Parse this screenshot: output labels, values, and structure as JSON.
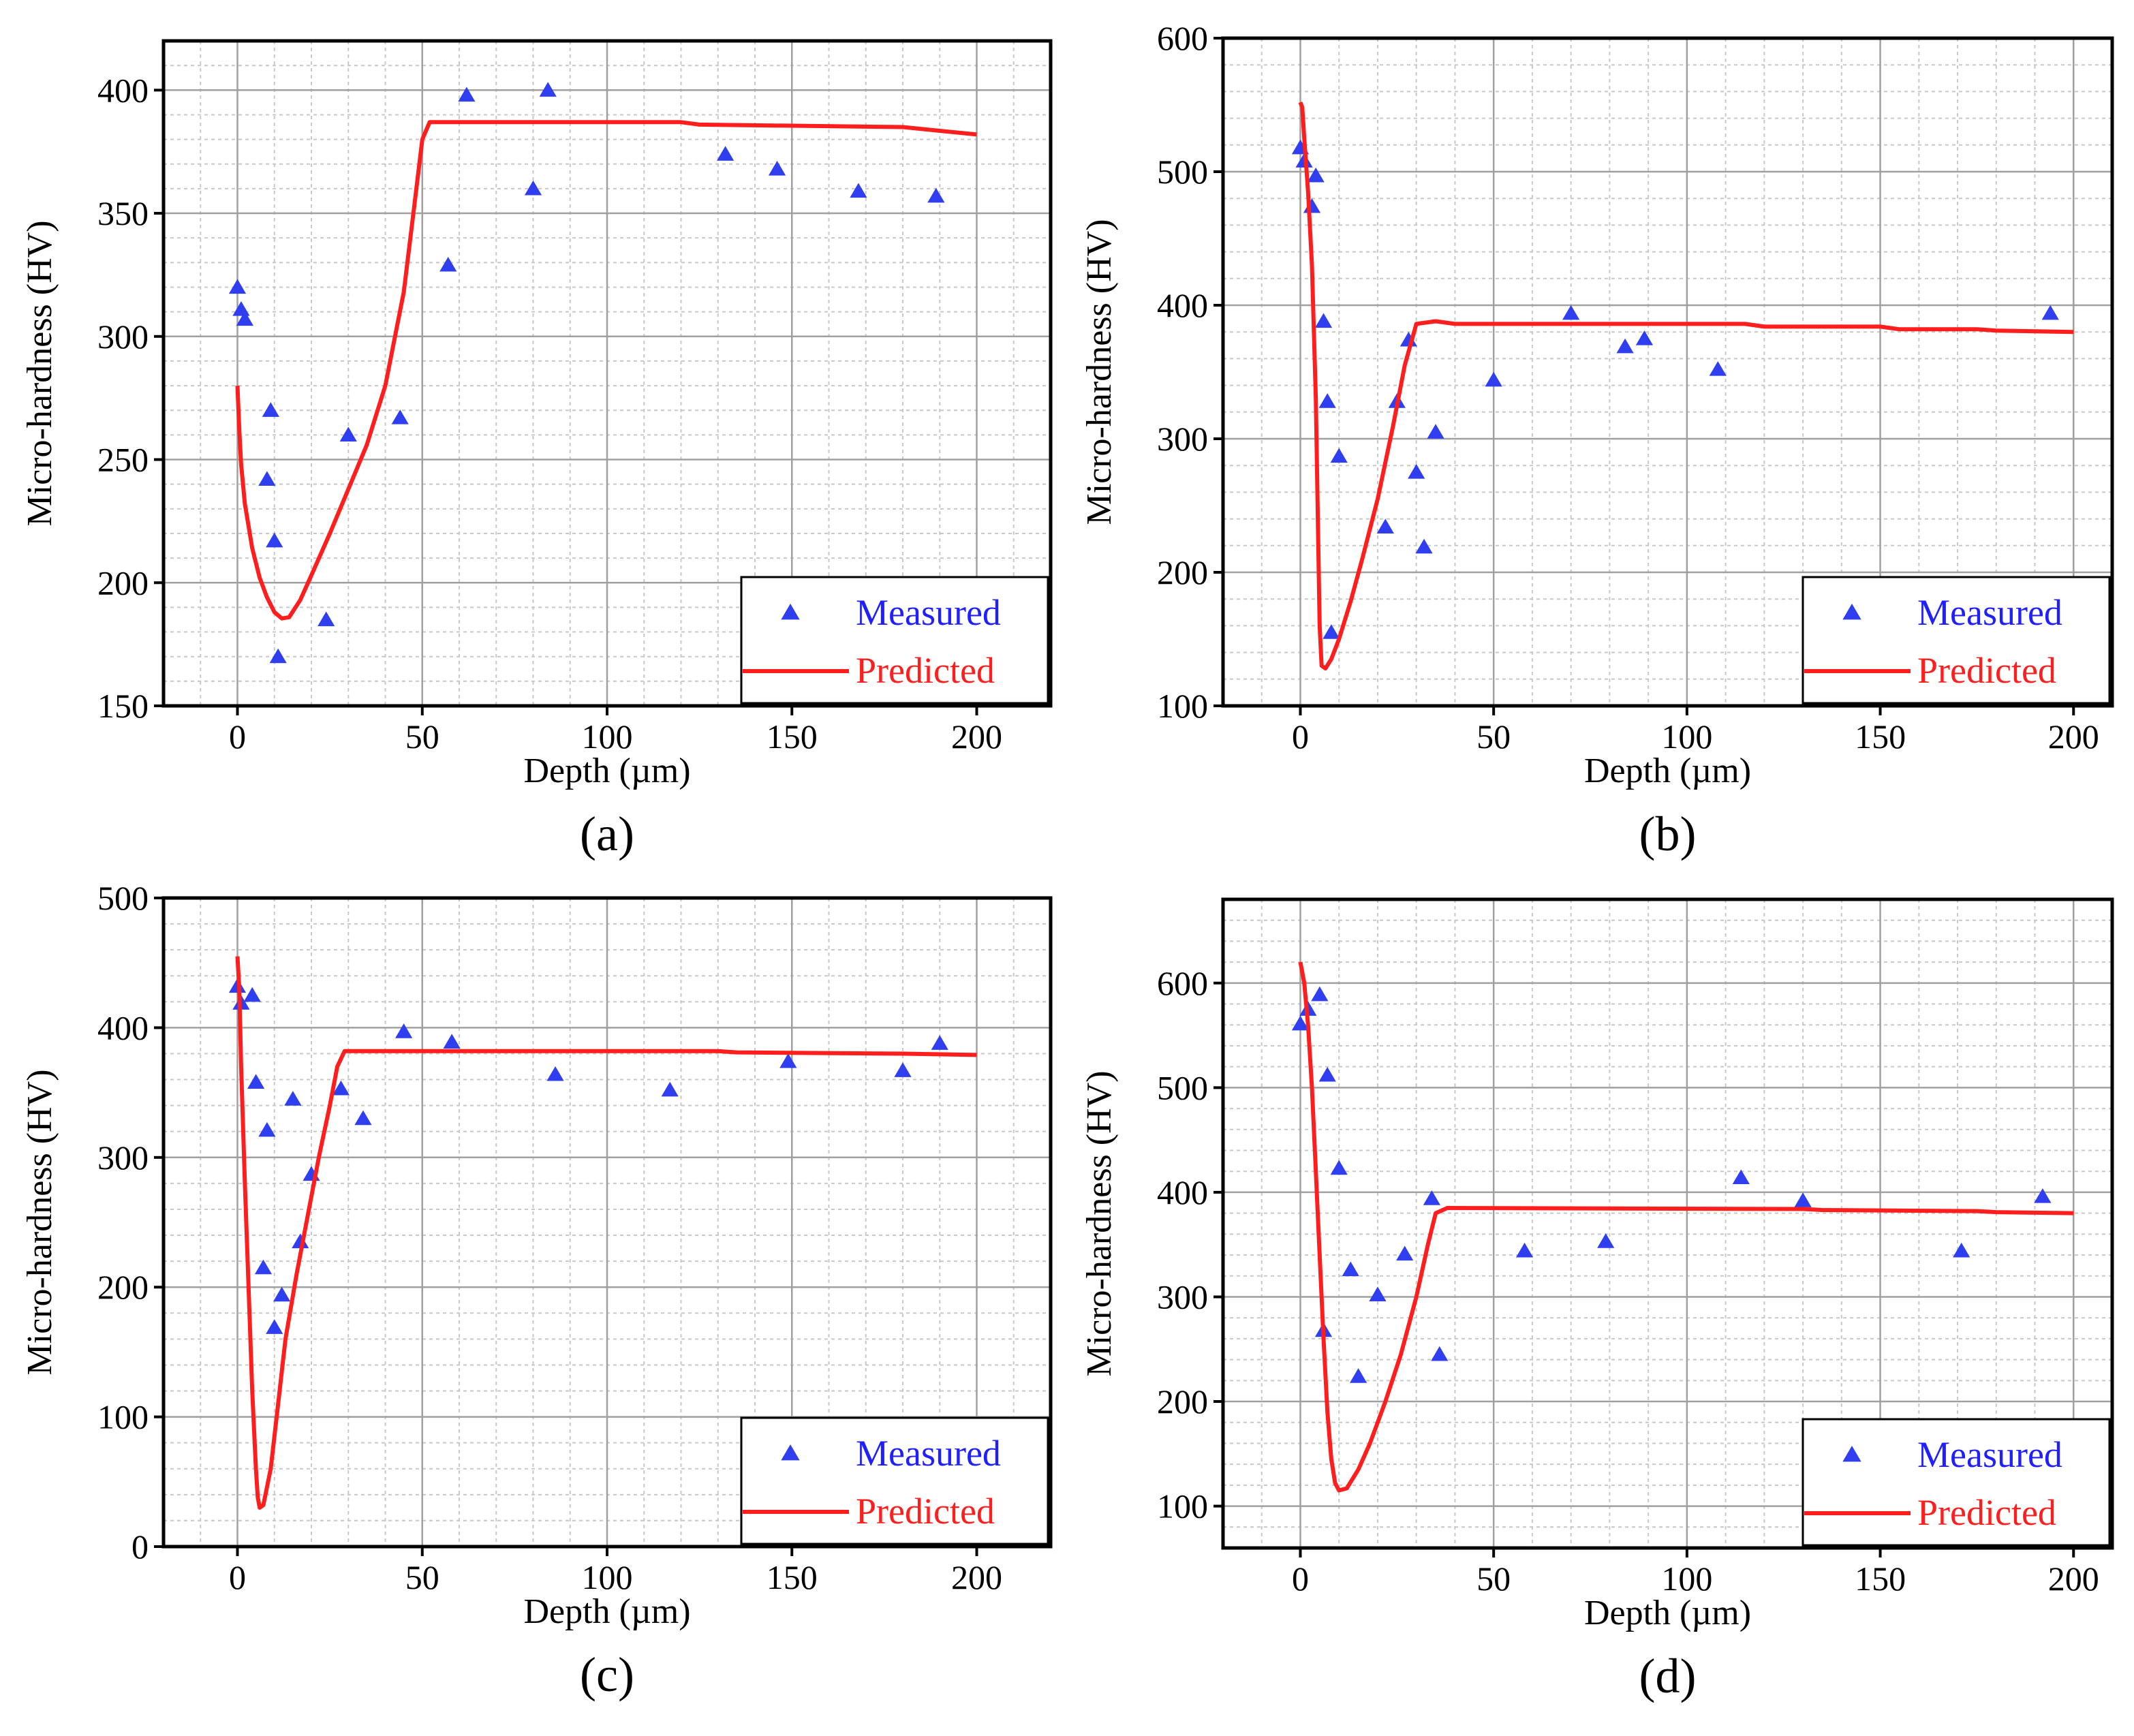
{
  "colors": {
    "measured": "#2f3ff0",
    "predicted": "#ff1e1e",
    "axis": "#000000",
    "grid_major": "#a0a0a0",
    "grid_minor": "#c8c8c8",
    "legend_measured_text": "#2020ff",
    "legend_predicted_text": "#ff1e1e"
  },
  "chart_data": [
    {
      "type": "scatter",
      "panel_label": "(a)",
      "xlabel": "Depth (µm)",
      "ylabel": "Micro-hardness (HV)",
      "xlim": [
        -20,
        220
      ],
      "ylim": [
        150,
        420
      ],
      "xticks": [
        0,
        50,
        100,
        150,
        200
      ],
      "yticks": [
        150,
        200,
        250,
        300,
        350,
        400
      ],
      "grid": true,
      "legend_position": "bottom-right",
      "series": [
        {
          "name": "Measured",
          "kind": "scatter",
          "marker": "triangle",
          "points": [
            [
              0,
              320
            ],
            [
              1,
              311
            ],
            [
              2,
              307
            ],
            [
              8,
              242
            ],
            [
              9,
              270
            ],
            [
              10,
              217
            ],
            [
              11,
              170
            ],
            [
              24,
              185
            ],
            [
              30,
              260
            ],
            [
              44,
              267
            ],
            [
              57,
              329
            ],
            [
              62,
              398
            ],
            [
              80,
              360
            ],
            [
              84,
              400
            ],
            [
              132,
              374
            ],
            [
              146,
              368
            ],
            [
              168,
              359
            ],
            [
              189,
              357
            ]
          ]
        },
        {
          "name": "Predicted",
          "kind": "line",
          "points": [
            [
              0,
              280
            ],
            [
              0.5,
              262
            ],
            [
              1,
              248
            ],
            [
              2,
              232
            ],
            [
              4,
              214
            ],
            [
              6,
              202
            ],
            [
              8,
              194
            ],
            [
              10,
              188
            ],
            [
              12,
              185.5
            ],
            [
              14,
              186
            ],
            [
              17,
              193
            ],
            [
              20,
              203
            ],
            [
              25,
              220
            ],
            [
              30,
              238
            ],
            [
              35,
              256
            ],
            [
              40,
              280
            ],
            [
              45,
              318
            ],
            [
              48,
              355
            ],
            [
              50,
              380
            ],
            [
              52,
              387
            ],
            [
              120,
              387
            ],
            [
              125,
              386
            ],
            [
              180,
              385
            ],
            [
              200,
              382
            ]
          ]
        }
      ]
    },
    {
      "type": "scatter",
      "panel_label": "(b)",
      "xlabel": "Depth (µm)",
      "ylabel": "Micro-hardness (HV)",
      "xlim": [
        -20,
        210
      ],
      "ylim": [
        100,
        600
      ],
      "xticks": [
        0,
        50,
        100,
        150,
        200
      ],
      "yticks": [
        100,
        200,
        300,
        400,
        500,
        600
      ],
      "grid": true,
      "legend_position": "bottom-right",
      "series": [
        {
          "name": "Measured",
          "kind": "scatter",
          "marker": "triangle",
          "points": [
            [
              0,
              518
            ],
            [
              1,
              508
            ],
            [
              3,
              474
            ],
            [
              4,
              497
            ],
            [
              6,
              388
            ],
            [
              7,
              328
            ],
            [
              8,
              155
            ],
            [
              10,
              287
            ],
            [
              22,
              234
            ],
            [
              25,
              328
            ],
            [
              28,
              374
            ],
            [
              30,
              275
            ],
            [
              32,
              219
            ],
            [
              35,
              305
            ],
            [
              50,
              344
            ],
            [
              70,
              394
            ],
            [
              84,
              369
            ],
            [
              89,
              375
            ],
            [
              108,
              352
            ],
            [
              194,
              394
            ]
          ]
        },
        {
          "name": "Predicted",
          "kind": "line",
          "points": [
            [
              0,
              552
            ],
            [
              0.5,
              548
            ],
            [
              1,
              525
            ],
            [
              2,
              485
            ],
            [
              3,
              430
            ],
            [
              4,
              330
            ],
            [
              5,
              160
            ],
            [
              5.5,
              130
            ],
            [
              6.5,
              128
            ],
            [
              8,
              135
            ],
            [
              10,
              150
            ],
            [
              13,
              178
            ],
            [
              16,
              210
            ],
            [
              20,
              255
            ],
            [
              24,
              310
            ],
            [
              27,
              355
            ],
            [
              30,
              386
            ],
            [
              35,
              388
            ],
            [
              40,
              386
            ],
            [
              115,
              386
            ],
            [
              120,
              384
            ],
            [
              150,
              384
            ],
            [
              155,
              382
            ],
            [
              175,
              382
            ],
            [
              180,
              381
            ],
            [
              200,
              380
            ]
          ]
        }
      ]
    },
    {
      "type": "scatter",
      "panel_label": "(c)",
      "xlabel": "Depth (µm)",
      "ylabel": "Micro-hardness (HV)",
      "xlim": [
        -20,
        220
      ],
      "ylim": [
        0,
        500
      ],
      "xticks": [
        0,
        50,
        100,
        150,
        200
      ],
      "yticks": [
        0,
        100,
        200,
        300,
        400,
        500
      ],
      "grid": true,
      "legend_position": "bottom-right",
      "series": [
        {
          "name": "Measured",
          "kind": "scatter",
          "marker": "triangle",
          "points": [
            [
              0,
              432
            ],
            [
              1,
              419
            ],
            [
              4,
              425
            ],
            [
              5,
              358
            ],
            [
              7,
              215
            ],
            [
              8,
              321
            ],
            [
              10,
              169
            ],
            [
              12,
              194
            ],
            [
              15,
              345
            ],
            [
              17,
              235
            ],
            [
              20,
              287
            ],
            [
              28,
              353
            ],
            [
              34,
              330
            ],
            [
              45,
              397
            ],
            [
              58,
              389
            ],
            [
              86,
              364
            ],
            [
              117,
              352
            ],
            [
              149,
              374
            ],
            [
              180,
              367
            ],
            [
              190,
              388
            ]
          ]
        },
        {
          "name": "Predicted",
          "kind": "line",
          "points": [
            [
              0,
              455
            ],
            [
              0.5,
              430
            ],
            [
              1,
              370
            ],
            [
              2,
              280
            ],
            [
              3,
              200
            ],
            [
              4,
              120
            ],
            [
              5,
              60
            ],
            [
              5.5,
              38
            ],
            [
              6,
              30
            ],
            [
              7,
              32
            ],
            [
              9,
              60
            ],
            [
              11,
              110
            ],
            [
              13,
              160
            ],
            [
              16,
              210
            ],
            [
              19,
              255
            ],
            [
              22,
              300
            ],
            [
              25,
              340
            ],
            [
              27,
              370
            ],
            [
              29,
              382
            ],
            [
              60,
              382
            ],
            [
              130,
              382
            ],
            [
              135,
              381
            ],
            [
              180,
              380
            ],
            [
              200,
              379
            ]
          ]
        }
      ]
    },
    {
      "type": "scatter",
      "panel_label": "(d)",
      "xlabel": "Depth (µm)",
      "ylabel": "Micro-hardness (HV)",
      "xlim": [
        -20,
        210
      ],
      "ylim": [
        60,
        680
      ],
      "xticks": [
        0,
        50,
        100,
        150,
        200
      ],
      "yticks": [
        100,
        200,
        300,
        400,
        500,
        600
      ],
      "grid": true,
      "legend_position": "bottom-right",
      "series": [
        {
          "name": "Measured",
          "kind": "scatter",
          "marker": "triangle",
          "points": [
            [
              0,
              561
            ],
            [
              2,
              575
            ],
            [
              5,
              589
            ],
            [
              6,
              268
            ],
            [
              7,
              512
            ],
            [
              10,
              423
            ],
            [
              13,
              326
            ],
            [
              15,
              224
            ],
            [
              20,
              302
            ],
            [
              27,
              341
            ],
            [
              34,
              394
            ],
            [
              36,
              245
            ],
            [
              58,
              344
            ],
            [
              79,
              353
            ],
            [
              114,
              414
            ],
            [
              130,
              392
            ],
            [
              171,
              344
            ],
            [
              192,
              396
            ]
          ]
        },
        {
          "name": "Predicted",
          "kind": "line",
          "points": [
            [
              0,
              620
            ],
            [
              1,
              600
            ],
            [
              2,
              560
            ],
            [
              3,
              500
            ],
            [
              4,
              420
            ],
            [
              5,
              340
            ],
            [
              6,
              260
            ],
            [
              7,
              190
            ],
            [
              8,
              145
            ],
            [
              9,
              122
            ],
            [
              10,
              115
            ],
            [
              12,
              117
            ],
            [
              15,
              135
            ],
            [
              18,
              160
            ],
            [
              22,
              200
            ],
            [
              26,
              245
            ],
            [
              30,
              300
            ],
            [
              33,
              350
            ],
            [
              35,
              380
            ],
            [
              38,
              385
            ],
            [
              130,
              384
            ],
            [
              135,
              383
            ],
            [
              175,
              382
            ],
            [
              180,
              381
            ],
            [
              200,
              380
            ]
          ]
        }
      ]
    }
  ]
}
